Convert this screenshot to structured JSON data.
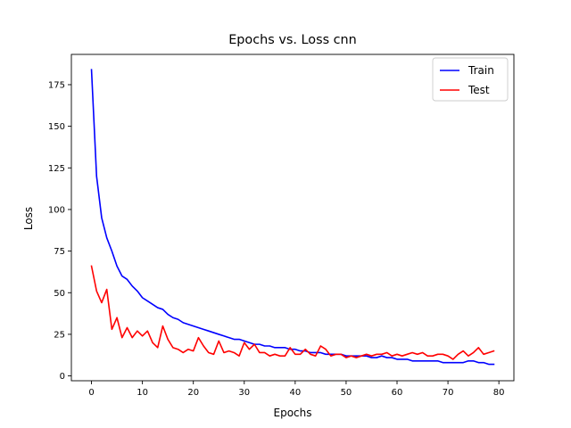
{
  "chart_data": {
    "type": "line",
    "title": "Epochs vs. Loss cnn",
    "xlabel": "Epochs",
    "ylabel": "Loss",
    "xlim": [
      -3.95,
      82.95
    ],
    "ylim": [
      -2.9,
      193.2
    ],
    "xticks": [
      0,
      10,
      20,
      30,
      40,
      50,
      60,
      70,
      80
    ],
    "yticks": [
      0,
      25,
      50,
      75,
      100,
      125,
      150,
      175
    ],
    "grid": false,
    "legend_position": "top-right",
    "series": [
      {
        "name": "Train",
        "color": "#0000ff",
        "x": [
          0,
          1,
          2,
          3,
          4,
          5,
          6,
          7,
          8,
          9,
          10,
          11,
          12,
          13,
          14,
          15,
          16,
          17,
          18,
          19,
          20,
          21,
          22,
          23,
          24,
          25,
          26,
          27,
          28,
          29,
          30,
          31,
          32,
          33,
          34,
          35,
          36,
          37,
          38,
          39,
          40,
          41,
          42,
          43,
          44,
          45,
          46,
          47,
          48,
          49,
          50,
          51,
          52,
          53,
          54,
          55,
          56,
          57,
          58,
          59,
          60,
          61,
          62,
          63,
          64,
          65,
          66,
          67,
          68,
          69,
          70,
          71,
          72,
          73,
          74,
          75,
          76,
          77,
          78,
          79
        ],
        "values": [
          184,
          120,
          95,
          83,
          75,
          66,
          60,
          58,
          54,
          51,
          47,
          45,
          43,
          41,
          40,
          37,
          35,
          34,
          32,
          31,
          30,
          29,
          28,
          27,
          26,
          25,
          24,
          23,
          22,
          22,
          21,
          20,
          19,
          19,
          18,
          18,
          17,
          17,
          17,
          16,
          16,
          15,
          15,
          14,
          14,
          14,
          13,
          13,
          13,
          13,
          12,
          12,
          12,
          12,
          12,
          11,
          11,
          12,
          11,
          11,
          10,
          10,
          10,
          9,
          9,
          9,
          9,
          9,
          9,
          8,
          8,
          8,
          8,
          8,
          9,
          9,
          8,
          8,
          7,
          7
        ]
      },
      {
        "name": "Test",
        "color": "#ff0000",
        "x": [
          0,
          1,
          2,
          3,
          4,
          5,
          6,
          7,
          8,
          9,
          10,
          11,
          12,
          13,
          14,
          15,
          16,
          17,
          18,
          19,
          20,
          21,
          22,
          23,
          24,
          25,
          26,
          27,
          28,
          29,
          30,
          31,
          32,
          33,
          34,
          35,
          36,
          37,
          38,
          39,
          40,
          41,
          42,
          43,
          44,
          45,
          46,
          47,
          48,
          49,
          50,
          51,
          52,
          53,
          54,
          55,
          56,
          57,
          58,
          59,
          60,
          61,
          62,
          63,
          64,
          65,
          66,
          67,
          68,
          69,
          70,
          71,
          72,
          73,
          74,
          75,
          76,
          77,
          78,
          79
        ],
        "values": [
          66,
          51,
          44,
          52,
          28,
          35,
          23,
          29,
          23,
          27,
          24,
          27,
          20,
          17,
          30,
          22,
          17,
          16,
          14,
          16,
          15,
          23,
          18,
          14,
          13,
          21,
          14,
          15,
          14,
          12,
          20,
          16,
          19,
          14,
          14,
          12,
          13,
          12,
          12,
          17,
          13,
          13,
          16,
          13,
          12,
          18,
          16,
          12,
          13,
          13,
          11,
          12,
          11,
          12,
          13,
          12,
          13,
          13,
          14,
          12,
          13,
          12,
          13,
          14,
          13,
          14,
          12,
          12,
          13,
          13,
          12,
          10,
          13,
          15,
          12,
          14,
          17,
          13,
          14,
          15
        ]
      }
    ]
  }
}
